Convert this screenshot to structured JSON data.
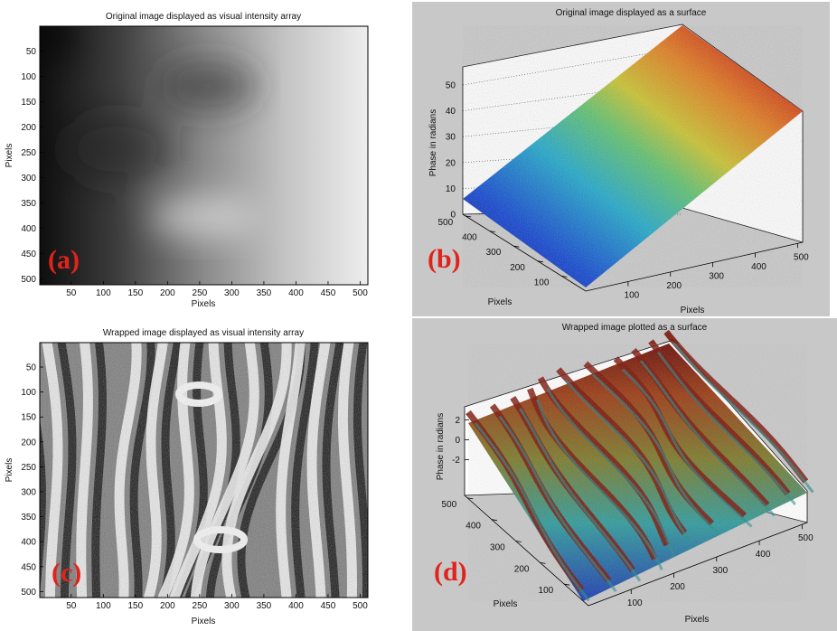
{
  "chart_data": [
    {
      "panel": "(a)",
      "type": "heatmap",
      "title": "Original image displayed as visual intensity array",
      "xlabel": "Pixels",
      "ylabel": "Pixels",
      "xticks": [
        50,
        100,
        150,
        200,
        250,
        300,
        350,
        400,
        450,
        500
      ],
      "yticks": [
        50,
        100,
        150,
        200,
        250,
        300,
        350,
        400,
        450,
        500
      ],
      "xlim": [
        1,
        512
      ],
      "ylim": [
        1,
        512
      ],
      "colormap": "gray",
      "description_values": "unwrapped phase ramp, dark at left (~0) to bright at right (~55)"
    },
    {
      "panel": "(b)",
      "type": "surface",
      "title": "Original image displayed as a surface",
      "xlabel": "Pixels",
      "ylabel": "Pixels",
      "zlabel": "Phase in radians",
      "xticks": [
        100,
        200,
        300,
        400,
        500
      ],
      "yticks": [
        100,
        200,
        300,
        400,
        500
      ],
      "zticks": [
        0,
        10,
        20,
        30,
        40,
        50
      ],
      "zlim": [
        0,
        55
      ],
      "colormap": "jet"
    },
    {
      "panel": "(c)",
      "type": "heatmap",
      "title": "Wrapped image displayed as visual intensity array",
      "xlabel": "Pixels",
      "ylabel": "Pixels",
      "xticks": [
        50,
        100,
        150,
        200,
        250,
        300,
        350,
        400,
        450,
        500
      ],
      "yticks": [
        50,
        100,
        150,
        200,
        250,
        300,
        350,
        400,
        450,
        500
      ],
      "xlim": [
        1,
        512
      ],
      "ylim": [
        1,
        512
      ],
      "colormap": "gray"
    },
    {
      "panel": "(d)",
      "type": "surface",
      "title": "Wrapped image plotted as a surface",
      "xlabel": "Pixels",
      "ylabel": "Pixels",
      "zlabel": "Phase in radians",
      "xticks": [
        100,
        200,
        300,
        400,
        500
      ],
      "yticks": [
        100,
        200,
        300,
        400,
        500
      ],
      "zticks": [
        -2,
        0,
        2
      ],
      "zlim": [
        -3.14,
        3.14
      ],
      "colormap": "jet"
    }
  ],
  "labels": {
    "a": "(a)",
    "b": "(b)",
    "c": "(c)",
    "d": "(d)"
  },
  "colors": {
    "label_red": "#e0241c",
    "panel_gray_bg": "#c8c8c8"
  }
}
